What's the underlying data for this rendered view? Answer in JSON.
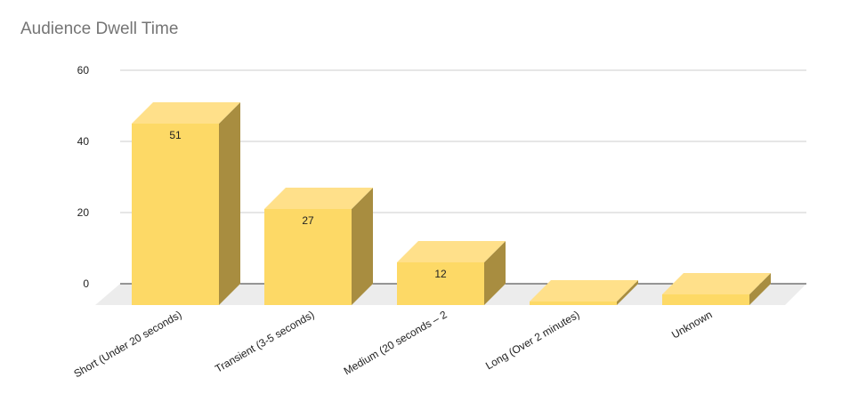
{
  "chart_data": {
    "type": "bar",
    "title": "Audience Dwell Time",
    "xlabel": "",
    "ylabel": "",
    "categories": [
      "Short (Under 20 seconds)",
      "Transient (3-5 seconds)",
      "Medium (20 seconds – 2",
      "Long (Over 2 minutes)",
      "Unknown"
    ],
    "values": [
      51,
      27,
      12,
      1,
      3
    ],
    "data_labels": [
      "51",
      "27",
      "12",
      "",
      ""
    ],
    "ylim": [
      0,
      60
    ],
    "yticks": [
      0,
      20,
      40,
      60
    ],
    "grid": true,
    "style": "3d",
    "colors": {
      "bar_front": "#fdd966",
      "bar_top": "#ffe08a",
      "bar_side": "#a88d40",
      "floor": "#ececec",
      "gridline": "#cccccc",
      "baseline": "#333333"
    }
  }
}
